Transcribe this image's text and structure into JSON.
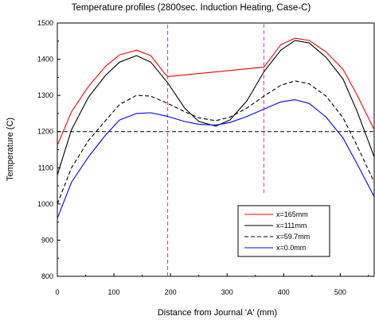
{
  "chart_data": {
    "type": "line",
    "title": "Temperature  profiles  (2800sec. Induction  Heating, Case-C)",
    "xlabel": "Distance from Journal 'A' (mm)",
    "ylabel": "Temperature (C)",
    "xlim": [
      0,
      560
    ],
    "ylim": [
      800,
      1500
    ],
    "xticks": [
      0,
      100,
      200,
      300,
      400,
      500
    ],
    "yticks": [
      800,
      900,
      1000,
      1100,
      1200,
      1300,
      1400,
      1500
    ],
    "grid": false,
    "legend_position": "bottom-right",
    "series": [
      {
        "name": "x=165mm",
        "color": "#ff0000",
        "dash": "solid",
        "x": [
          0,
          25,
          55,
          85,
          110,
          140,
          165,
          190,
          195,
          365,
          395,
          420,
          445,
          475,
          505,
          530,
          560
        ],
        "y": [
          1162,
          1255,
          1325,
          1380,
          1412,
          1425,
          1410,
          1360,
          1352,
          1378,
          1440,
          1458,
          1452,
          1420,
          1372,
          1300,
          1205
        ]
      },
      {
        "name": "x=111mm",
        "color": "#000000",
        "dash": "solid",
        "x": [
          0,
          25,
          55,
          85,
          110,
          140,
          165,
          195,
          225,
          250,
          280,
          305,
          335,
          365,
          395,
          420,
          445,
          475,
          505,
          530,
          560
        ],
        "y": [
          1080,
          1205,
          1295,
          1355,
          1392,
          1410,
          1392,
          1335,
          1265,
          1228,
          1215,
          1232,
          1285,
          1365,
          1425,
          1452,
          1445,
          1405,
          1345,
          1255,
          1130
        ]
      },
      {
        "name": "x=59.7mm",
        "color": "#000000",
        "dash": "dashed",
        "x": [
          0,
          25,
          55,
          85,
          110,
          140,
          165,
          195,
          225,
          250,
          280,
          305,
          335,
          365,
          395,
          420,
          445,
          475,
          505,
          530,
          560
        ],
        "y": [
          1000,
          1100,
          1175,
          1230,
          1275,
          1300,
          1298,
          1278,
          1255,
          1238,
          1230,
          1240,
          1265,
          1298,
          1328,
          1340,
          1332,
          1298,
          1238,
          1160,
          1060
        ]
      },
      {
        "name": "x=0.0mm",
        "color": "#0000ff",
        "dash": "solid",
        "x": [
          0,
          25,
          55,
          85,
          110,
          140,
          165,
          195,
          225,
          250,
          280,
          305,
          335,
          365,
          395,
          420,
          445,
          475,
          505,
          530,
          560
        ],
        "y": [
          960,
          1060,
          1130,
          1190,
          1232,
          1250,
          1252,
          1242,
          1228,
          1220,
          1218,
          1225,
          1242,
          1262,
          1282,
          1288,
          1278,
          1240,
          1182,
          1110,
          1020
        ]
      }
    ],
    "reference_lines": [
      {
        "orientation": "horizontal",
        "value": 1200,
        "color": "#000000",
        "dash": "dashed"
      },
      {
        "orientation": "vertical",
        "value": 195,
        "color": "#cc33cc",
        "dash": "dashed"
      },
      {
        "orientation": "vertical",
        "value": 365,
        "color": "#cc33cc",
        "dash": "dashed",
        "from": 1030,
        "to": 1500
      }
    ]
  }
}
